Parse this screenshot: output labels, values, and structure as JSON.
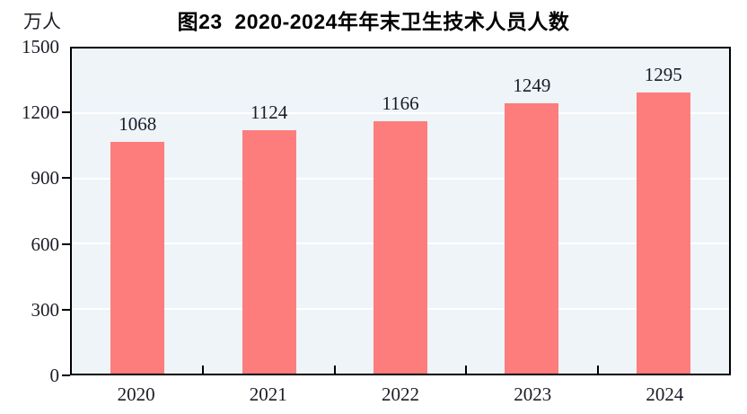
{
  "chart_data": {
    "type": "bar",
    "title": "图23  2020-2024年年末卫生技术人员人数",
    "unit_label": "万人",
    "categories": [
      "2020",
      "2021",
      "2022",
      "2023",
      "2024"
    ],
    "values": [
      1068,
      1124,
      1166,
      1249,
      1295
    ],
    "ylim": [
      0,
      1500
    ],
    "yticks": [
      0,
      300,
      600,
      900,
      1200,
      1500
    ],
    "grid": "horizontal",
    "legend": "none",
    "colors": {
      "bar": "#fd7d7d",
      "plot_background": "#eef4f8",
      "gridline": "#ffffff",
      "axis": "#000000",
      "text": "#1b1b26"
    }
  }
}
